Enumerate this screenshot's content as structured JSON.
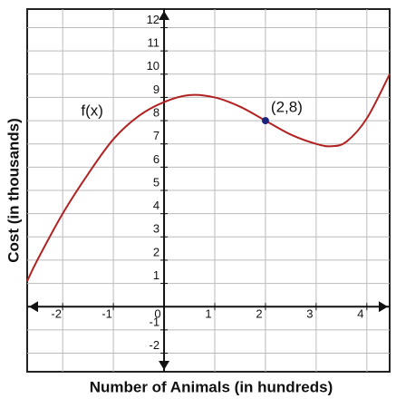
{
  "chart_data": {
    "type": "line",
    "xlabel": "Number of Animals (in hundreds)",
    "ylabel": "Cost (in thousands)",
    "xlim": [
      -2.7,
      4.45
    ],
    "ylim": [
      -2.8,
      12.8
    ],
    "xticks": [
      -2,
      -1,
      0,
      1,
      2,
      3,
      4
    ],
    "yticks": [
      -2,
      -1,
      1,
      2,
      3,
      4,
      5,
      6,
      7,
      8,
      9,
      10,
      11,
      12
    ],
    "grid": true,
    "series": [
      {
        "name": "f(x)",
        "color": "#b22222",
        "x": [
          -2.7,
          -2.5,
          -2,
          -1.5,
          -1,
          -0.5,
          0,
          0.5,
          1,
          1.5,
          2,
          2.5,
          3,
          3.3,
          3.6,
          4,
          4.45
        ],
        "y": [
          1.1,
          2,
          4,
          5.7,
          7.2,
          8.2,
          8.8,
          9.1,
          9.0,
          8.6,
          8,
          7.4,
          7.0,
          6.9,
          7.1,
          8.1,
          10
        ]
      }
    ],
    "points": [
      {
        "x": 2,
        "y": 8,
        "label": "(2,8)",
        "color": "#1a237e"
      }
    ]
  }
}
